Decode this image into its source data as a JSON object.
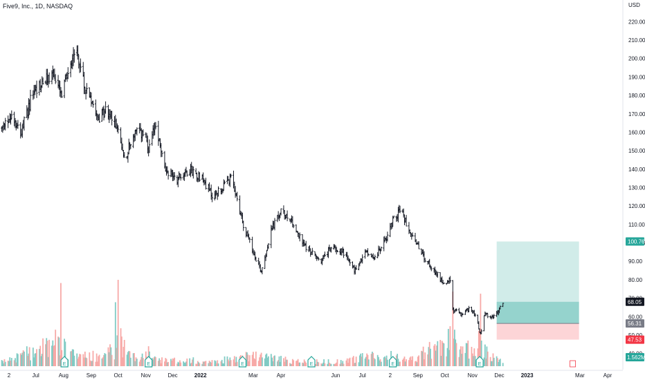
{
  "chart_data": {
    "type": "ohlc",
    "title": "Five9, Inc., 1D, NASDAQ",
    "currency": "USD",
    "ylim": [
      35,
      225
    ],
    "yticks": [
      40,
      50,
      60,
      70,
      80,
      90,
      100,
      110,
      120,
      130,
      140,
      150,
      160,
      170,
      180,
      190,
      200,
      210,
      220
    ],
    "ytick_labels": [
      "40.00",
      "50.00",
      "60.00",
      "70.00",
      "80.00",
      "90.00",
      "100.00",
      "110.00",
      "120.00",
      "130.00",
      "140.00",
      "150.00",
      "160.00",
      "170.00",
      "180.00",
      "190.00",
      "200.00",
      "210.00",
      "220.00"
    ],
    "xticks": [
      "2021-06-01",
      "2021-07-01",
      "2021-08-01",
      "2021-09-01",
      "2021-10-01",
      "2021-11-01",
      "2021-12-01",
      "2022-01-01",
      "2022-03-01",
      "2022-04-01",
      "2022-06-01",
      "2022-07-01",
      "2022-08-01",
      "2022-09-01",
      "2022-10-01",
      "2022-11-01",
      "2022-12-01",
      "2023-01-01",
      "2023-03-01",
      "2023-04-01"
    ],
    "xtick_labels": [
      "2",
      "Jul",
      "Aug",
      "Sep",
      "Oct",
      "Nov",
      "Dec",
      "2022",
      "Mar",
      "Apr",
      "Jun",
      "Jul",
      "2",
      "Sep",
      "Oct",
      "Nov",
      "Dec",
      "2023",
      "Mar",
      "Apr"
    ],
    "xlim": [
      "2021-05-22",
      "2023-04-18"
    ],
    "price_path": [
      [
        "2021-05-22",
        160
      ],
      [
        "2021-06-05",
        170
      ],
      [
        "2021-06-15",
        160
      ],
      [
        "2021-06-28",
        182
      ],
      [
        "2021-07-08",
        186
      ],
      [
        "2021-07-20",
        192
      ],
      [
        "2021-07-30",
        179
      ],
      [
        "2021-08-08",
        197
      ],
      [
        "2021-08-15",
        207
      ],
      [
        "2021-08-24",
        185
      ],
      [
        "2021-08-31",
        180
      ],
      [
        "2021-09-10",
        168
      ],
      [
        "2021-09-18",
        172
      ],
      [
        "2021-09-28",
        165
      ],
      [
        "2021-10-08",
        146
      ],
      [
        "2021-10-20",
        160
      ],
      [
        "2021-10-30",
        159
      ],
      [
        "2021-11-04",
        149
      ],
      [
        "2021-11-12",
        165
      ],
      [
        "2021-11-22",
        140
      ],
      [
        "2021-12-06",
        135
      ],
      [
        "2021-12-20",
        140
      ],
      [
        "2022-01-03",
        135
      ],
      [
        "2022-01-15",
        125
      ],
      [
        "2022-01-28",
        131
      ],
      [
        "2022-02-05",
        135
      ],
      [
        "2022-02-18",
        110
      ],
      [
        "2022-03-01",
        95
      ],
      [
        "2022-03-10",
        85
      ],
      [
        "2022-03-22",
        108
      ],
      [
        "2022-04-01",
        117
      ],
      [
        "2022-04-12",
        113
      ],
      [
        "2022-04-25",
        100
      ],
      [
        "2022-05-05",
        95
      ],
      [
        "2022-05-15",
        90
      ],
      [
        "2022-05-28",
        98
      ],
      [
        "2022-06-10",
        95
      ],
      [
        "2022-06-22",
        85
      ],
      [
        "2022-07-05",
        95
      ],
      [
        "2022-07-15",
        92
      ],
      [
        "2022-07-25",
        100
      ],
      [
        "2022-08-05",
        113
      ],
      [
        "2022-08-12",
        118
      ],
      [
        "2022-08-20",
        110
      ],
      [
        "2022-08-30",
        100
      ],
      [
        "2022-09-10",
        90
      ],
      [
        "2022-09-20",
        85
      ],
      [
        "2022-09-30",
        78
      ],
      [
        "2022-10-08",
        80
      ],
      [
        "2022-10-10",
        64
      ],
      [
        "2022-10-20",
        61
      ],
      [
        "2022-10-30",
        65
      ],
      [
        "2022-11-05",
        60
      ],
      [
        "2022-11-10",
        50
      ],
      [
        "2022-11-15",
        62
      ],
      [
        "2022-11-22",
        59
      ],
      [
        "2022-11-29",
        62
      ],
      [
        "2022-12-05",
        68
      ]
    ],
    "volume_path": [
      [
        "2021-05-22",
        3
      ],
      [
        "2021-07-29",
        24
      ],
      [
        "2021-08-04",
        15
      ],
      [
        "2021-08-20",
        8
      ],
      [
        "2021-09-15",
        11
      ],
      [
        "2021-09-28",
        16
      ],
      [
        "2021-10-01",
        27
      ],
      [
        "2021-10-15",
        8
      ],
      [
        "2021-11-04",
        12
      ],
      [
        "2021-11-20",
        5
      ],
      [
        "2021-12-20",
        6
      ],
      [
        "2022-01-15",
        4
      ],
      [
        "2022-03-01",
        10
      ],
      [
        "2022-04-15",
        5
      ],
      [
        "2022-06-01",
        4
      ],
      [
        "2022-07-28",
        11
      ],
      [
        "2022-08-20",
        5
      ],
      [
        "2022-10-10",
        25
      ],
      [
        "2022-10-20",
        12
      ],
      [
        "2022-11-10",
        22
      ],
      [
        "2022-11-20",
        9
      ],
      [
        "2022-12-05",
        6
      ]
    ],
    "volume_spikes": [
      [
        "2021-07-29",
        78
      ],
      [
        "2021-09-28",
        60
      ],
      [
        "2021-10-01",
        81
      ],
      [
        "2022-10-10",
        70
      ],
      [
        "2022-11-10",
        68
      ]
    ],
    "earnings_markers": [
      "2021-08-02",
      "2021-11-04",
      "2022-02-17",
      "2022-05-05",
      "2022-08-04",
      "2022-11-09"
    ],
    "dividend_marker": "2023-02-21",
    "position": {
      "type": "long",
      "start": "2022-11-28",
      "end": "2023-02-28",
      "entry": 56.31,
      "target": 100.76,
      "stop": 47.53,
      "current": 68.05
    },
    "price_labels": [
      {
        "value": 100.76,
        "text": "100.76",
        "color": "#26a69a"
      },
      {
        "value": 68.05,
        "text": "68.05",
        "color": "#131722"
      },
      {
        "value": 56.31,
        "text": "56.31",
        "color": "#787b86"
      },
      {
        "value": 47.53,
        "text": "47.53",
        "color": "#f23645"
      }
    ],
    "volume_label": {
      "text": "1.562M",
      "color": "#26a69a"
    },
    "colors": {
      "up": "#131722",
      "down": "#131722",
      "vol_up": "#80cbc4",
      "vol_down": "#f7a9a7",
      "target_fill": "#b2dfdb",
      "stop_fill": "#fccbcd",
      "earnings": "#26a69a"
    }
  }
}
